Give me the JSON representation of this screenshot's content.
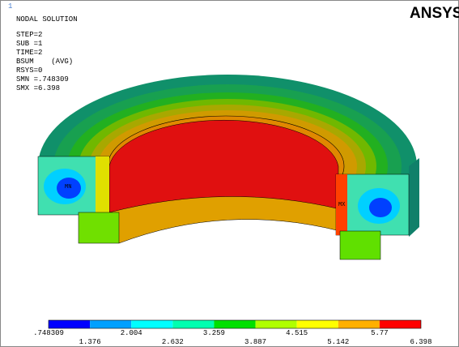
{
  "window_number": "1",
  "logo": "ANSYS",
  "info": {
    "title": "NODAL SOLUTION",
    "lines": [
      "STEP=2",
      "SUB =1",
      "TIME=2",
      "BSUM    (AVG)",
      "RSYS=0",
      "SMN =.748309",
      "SMX =6.398"
    ]
  },
  "markers": {
    "min": "MN",
    "max": "MX"
  },
  "legend": {
    "labels": [
      ".748309",
      "1.376",
      "2.004",
      "2.632",
      "3.259",
      "3.887",
      "4.515",
      "5.142",
      "5.77",
      "6.398"
    ],
    "colors": [
      "#0000ff",
      "#00a0ff",
      "#00ffff",
      "#00ffb0",
      "#00e000",
      "#b0ff00",
      "#ffff00",
      "#ffb000",
      "#ff0000"
    ]
  }
}
